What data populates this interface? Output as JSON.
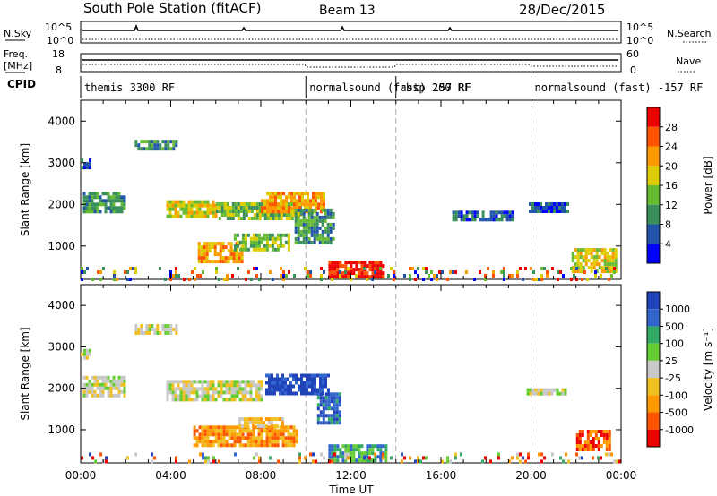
{
  "header": {
    "station": "South Pole Station (fitACF)",
    "beam": "Beam 13",
    "date": "28/Dec/2015"
  },
  "strip": {
    "nsky_label": "N.Sky",
    "nsearch_label": "N.Search",
    "noise_ticks": [
      "10^5",
      "10^0"
    ],
    "freq_label_1": "Freq.",
    "freq_label_2": "[MHz]",
    "freq_ticks": [
      "18",
      "8"
    ],
    "nave_label": "Nave",
    "nave_ticks": [
      "60",
      "0"
    ],
    "cpid_label": "CPID",
    "cpid_segments": [
      {
        "label": "themis 3300 RF",
        "start": 0,
        "end": 10
      },
      {
        "label": "normalsound (fast) 157 RF",
        "start": 10,
        "end": 14
      },
      {
        "label": "rbsp 200 RF",
        "start": 14,
        "end": 20
      },
      {
        "label": "normalsound (fast) -157 RF",
        "start": 20,
        "end": 24
      }
    ]
  },
  "chart_data": [
    {
      "type": "heatmap",
      "xlabel": "",
      "ylabel": "Slant Range [km]",
      "y_ticks": [
        "1000",
        "2000",
        "3000",
        "4000"
      ],
      "ylim": [
        200,
        4500
      ],
      "xlim": [
        0,
        24
      ],
      "colorbar": {
        "label": "Power [dB]",
        "ticks": [
          "4",
          "8",
          "12",
          "16",
          "20",
          "24",
          "28"
        ],
        "colors": [
          "#0000ff",
          "#2255aa",
          "#3a8f5a",
          "#66bb33",
          "#ddcc00",
          "#ff9900",
          "#ff5500",
          "#ee0000"
        ]
      },
      "patches": [
        {
          "t0": 0.0,
          "t1": 0.4,
          "r0": 2900,
          "r1": 3100,
          "level": 1
        },
        {
          "t0": 0.1,
          "t1": 1.9,
          "r0": 1800,
          "r1": 2300,
          "level": 2
        },
        {
          "t0": 2.4,
          "t1": 4.2,
          "r0": 3350,
          "r1": 3550,
          "level": 2
        },
        {
          "t0": 3.8,
          "t1": 6.0,
          "r0": 1700,
          "r1": 2100,
          "level": 4
        },
        {
          "t0": 5.2,
          "t1": 7.2,
          "r0": 650,
          "r1": 1100,
          "level": 5
        },
        {
          "t0": 6.0,
          "t1": 9.8,
          "r0": 1650,
          "r1": 2050,
          "level": 3
        },
        {
          "t0": 6.8,
          "t1": 9.3,
          "r0": 900,
          "r1": 1300,
          "level": 3
        },
        {
          "t0": 8.0,
          "t1": 10.8,
          "r0": 1800,
          "r1": 2300,
          "level": 5
        },
        {
          "t0": 9.5,
          "t1": 11.2,
          "r0": 1100,
          "r1": 1900,
          "level": 2
        },
        {
          "t0": 11.0,
          "t1": 13.4,
          "r0": 300,
          "r1": 650,
          "level": 7
        },
        {
          "t0": 16.5,
          "t1": 19.2,
          "r0": 1600,
          "r1": 1850,
          "level": 1
        },
        {
          "t0": 19.9,
          "t1": 21.6,
          "r0": 1850,
          "r1": 2050,
          "level": 1
        },
        {
          "t0": 21.8,
          "t1": 23.8,
          "r0": 350,
          "r1": 950,
          "level": 4
        },
        {
          "t0": 0.0,
          "t1": 24.0,
          "r0": 200,
          "r1": 500,
          "level": 3
        }
      ]
    },
    {
      "type": "heatmap",
      "xlabel": "Time UT",
      "ylabel": "Slant Range [km]",
      "x_ticks": [
        "00:00",
        "04:00",
        "08:00",
        "12:00",
        "16:00",
        "20:00",
        "00:00"
      ],
      "y_ticks": [
        "1000",
        "2000",
        "3000",
        "4000"
      ],
      "ylim": [
        200,
        4500
      ],
      "xlim": [
        0,
        24
      ],
      "colorbar": {
        "label": "Velocity [m s⁻¹]",
        "ticks": [
          "1000",
          "500",
          "100",
          "25",
          "-25",
          "-100",
          "-500",
          "-1000"
        ],
        "colors": [
          "#2244bb",
          "#3366cc",
          "#33aa66",
          "#66cc33",
          "#c8c8c8",
          "#f0c020",
          "#ff9900",
          "#ff5500",
          "#ee0000"
        ]
      },
      "patches": [
        {
          "t0": 0.0,
          "t1": 0.4,
          "r0": 2700,
          "r1": 2950,
          "level": 4
        },
        {
          "t0": 0.1,
          "t1": 1.9,
          "r0": 1850,
          "r1": 2300,
          "level": 4
        },
        {
          "t0": 2.4,
          "t1": 4.2,
          "r0": 3350,
          "r1": 3550,
          "level": 4
        },
        {
          "t0": 3.8,
          "t1": 8.0,
          "r0": 1700,
          "r1": 2200,
          "level": 4
        },
        {
          "t0": 5.0,
          "t1": 9.6,
          "r0": 650,
          "r1": 1100,
          "level": 6
        },
        {
          "t0": 7.0,
          "t1": 9.0,
          "r0": 1100,
          "r1": 1300,
          "level": 5
        },
        {
          "t0": 8.2,
          "t1": 11.0,
          "r0": 1850,
          "r1": 2350,
          "level": 0
        },
        {
          "t0": 10.5,
          "t1": 11.5,
          "r0": 1200,
          "r1": 1900,
          "level": 1
        },
        {
          "t0": 11.0,
          "t1": 13.6,
          "r0": 300,
          "r1": 650,
          "level": 2
        },
        {
          "t0": 19.8,
          "t1": 21.5,
          "r0": 1850,
          "r1": 2000,
          "level": 4
        },
        {
          "t0": 22.0,
          "t1": 23.5,
          "r0": 500,
          "r1": 1000,
          "level": 7
        },
        {
          "t0": 0.0,
          "t1": 24.0,
          "r0": 200,
          "r1": 450,
          "level": 4
        }
      ]
    }
  ]
}
